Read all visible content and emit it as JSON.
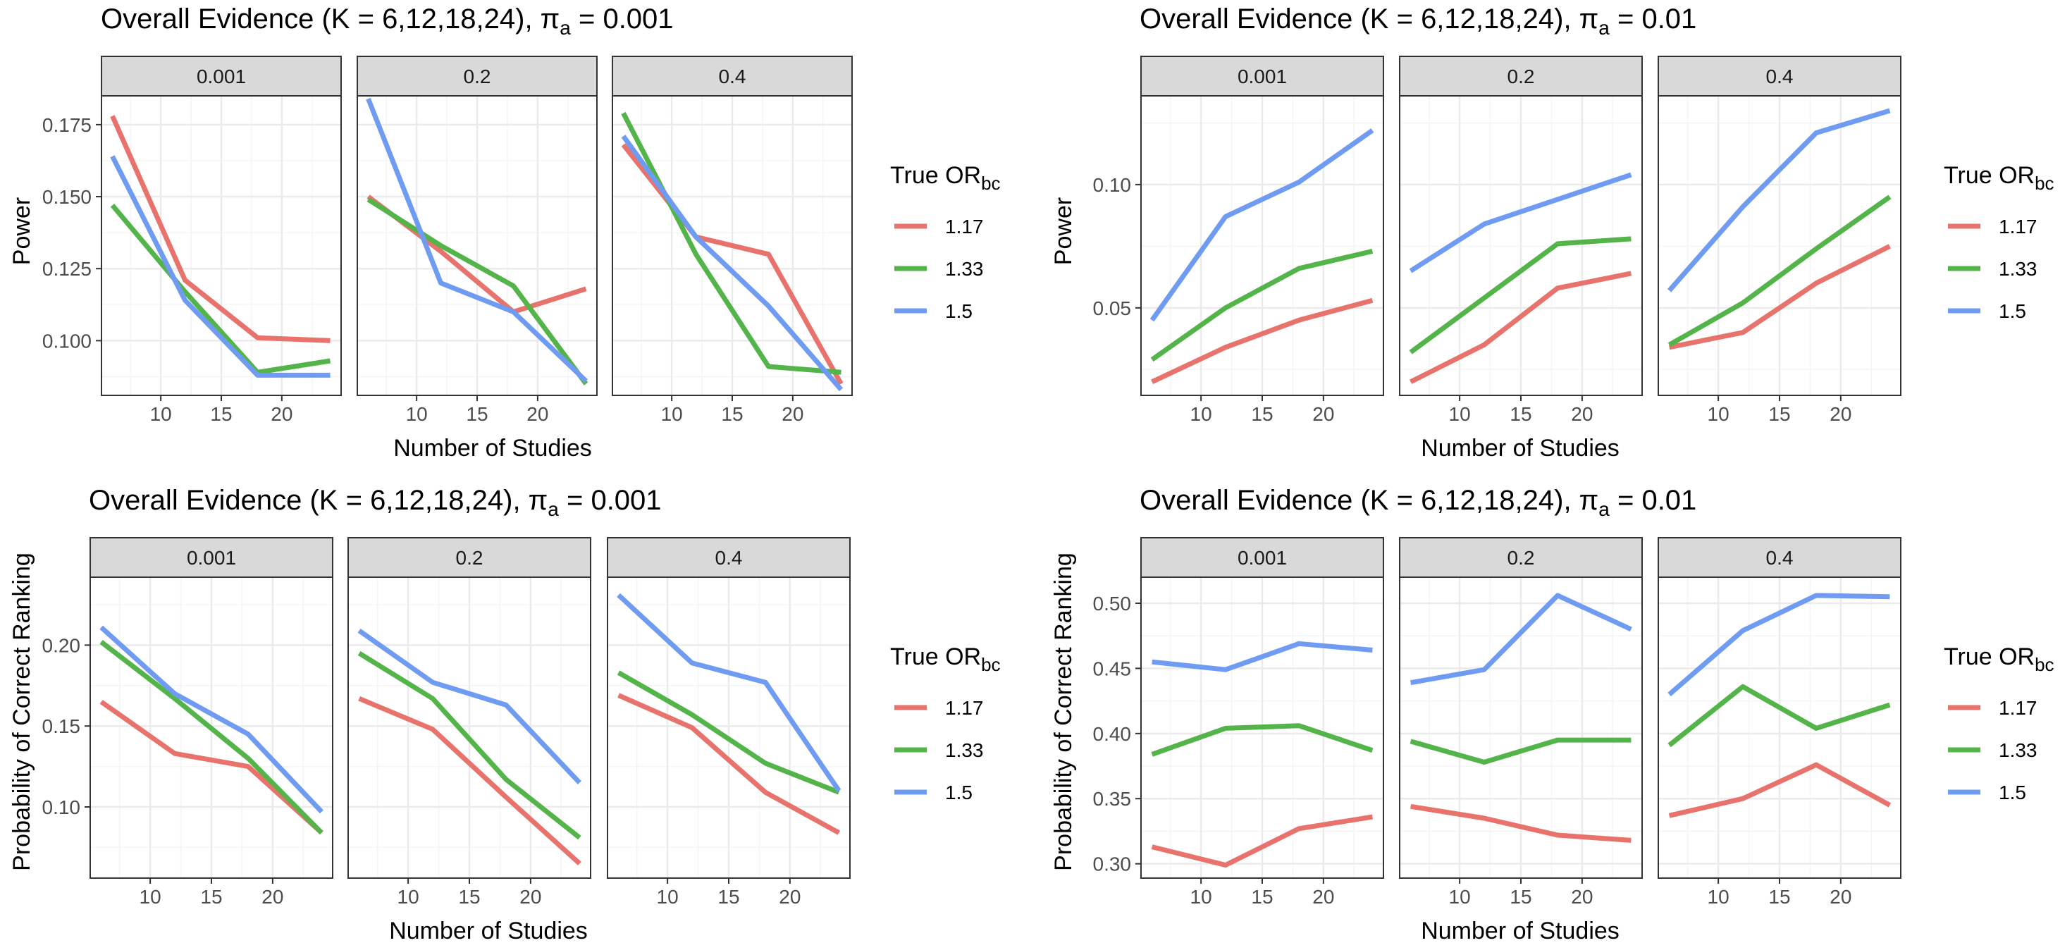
{
  "legend_title": "True OR",
  "legend_title_sub": "bc",
  "colors": {
    "1.17": "#E8736C",
    "1.33": "#53B44A",
    "1.5": "#6F9CF2",
    "strip_bg": "#D9D9D9",
    "panel_border": "#333333",
    "grid_major": "#EBEBEB",
    "grid_minor": "#F5F5F5"
  },
  "chart_data": [
    {
      "id": "top-left",
      "type": "line",
      "title_prefix": "Overall Evidence (K = 6,12,18,24), ",
      "title_pi": "π",
      "title_sub": "a",
      "title_suffix": " = 0.001",
      "xlabel": "Number of Studies",
      "ylabel": "Power",
      "xlim": [
        5.1,
        24.9
      ],
      "ylim": [
        0.081,
        0.185
      ],
      "x_ticks": [
        10,
        15,
        20
      ],
      "y_ticks": [
        0.1,
        0.125,
        0.15,
        0.175
      ],
      "y_tick_labels": [
        "0.100",
        "0.125",
        "0.150",
        "0.175"
      ],
      "x": [
        6,
        12,
        18,
        24
      ],
      "facets": [
        {
          "label": "0.001",
          "series": [
            {
              "name": "1.17",
              "values": [
                0.178,
                0.121,
                0.101,
                0.1
              ]
            },
            {
              "name": "1.33",
              "values": [
                0.147,
                0.117,
                0.089,
                0.093
              ]
            },
            {
              "name": "1.5",
              "values": [
                0.164,
                0.114,
                0.088,
                0.088
              ]
            }
          ]
        },
        {
          "label": "0.2",
          "series": [
            {
              "name": "1.17",
              "values": [
                0.15,
                0.131,
                0.11,
                0.118
              ]
            },
            {
              "name": "1.33",
              "values": [
                0.149,
                0.133,
                0.119,
                0.085
              ]
            },
            {
              "name": "1.5",
              "values": [
                0.184,
                0.12,
                0.11,
                0.086
              ]
            }
          ]
        },
        {
          "label": "0.4",
          "series": [
            {
              "name": "1.17",
              "values": [
                0.168,
                0.136,
                0.13,
                0.085
              ]
            },
            {
              "name": "1.33",
              "values": [
                0.179,
                0.13,
                0.091,
                0.089
              ]
            },
            {
              "name": "1.5",
              "values": [
                0.171,
                0.136,
                0.112,
                0.083
              ]
            }
          ]
        }
      ],
      "legend": [
        "1.17",
        "1.33",
        "1.5"
      ]
    },
    {
      "id": "top-right",
      "type": "line",
      "title_prefix": "Overall Evidence (K = 6,12,18,24), ",
      "title_pi": "π",
      "title_sub": "a",
      "title_suffix": " = 0.01",
      "xlabel": "Number of Studies",
      "ylabel": "Power",
      "xlim": [
        5.1,
        24.9
      ],
      "ylim": [
        0.0145,
        0.136
      ],
      "x_ticks": [
        10,
        15,
        20
      ],
      "y_ticks": [
        0.05,
        0.1
      ],
      "y_tick_labels": [
        "0.05",
        "0.10"
      ],
      "x": [
        6,
        12,
        18,
        24
      ],
      "facets": [
        {
          "label": "0.001",
          "series": [
            {
              "name": "1.17",
              "values": [
                0.02,
                0.034,
                0.045,
                0.053
              ]
            },
            {
              "name": "1.33",
              "values": [
                0.029,
                0.05,
                0.066,
                0.073
              ]
            },
            {
              "name": "1.5",
              "values": [
                0.045,
                0.087,
                0.101,
                0.122
              ]
            }
          ]
        },
        {
          "label": "0.2",
          "series": [
            {
              "name": "1.17",
              "values": [
                0.02,
                0.035,
                0.058,
                0.064
              ]
            },
            {
              "name": "1.33",
              "values": [
                0.032,
                0.054,
                0.076,
                0.078
              ]
            },
            {
              "name": "1.5",
              "values": [
                0.065,
                0.084,
                0.094,
                0.104
              ]
            }
          ]
        },
        {
          "label": "0.4",
          "series": [
            {
              "name": "1.17",
              "values": [
                0.034,
                0.04,
                0.06,
                0.075
              ]
            },
            {
              "name": "1.33",
              "values": [
                0.035,
                0.052,
                0.074,
                0.095
              ]
            },
            {
              "name": "1.5",
              "values": [
                0.057,
                0.091,
                0.121,
                0.13
              ]
            }
          ]
        }
      ],
      "legend": [
        "1.17",
        "1.33",
        "1.5"
      ]
    },
    {
      "id": "bottom-left",
      "type": "line",
      "title_prefix": "Overall Evidence (K = 6,12,18,24), ",
      "title_pi": "π",
      "title_sub": "a",
      "title_suffix": " = 0.001",
      "xlabel": "Number of Studies",
      "ylabel": "Probability of Correct Ranking",
      "xlim": [
        5.1,
        24.9
      ],
      "ylim": [
        0.056,
        0.242
      ],
      "x_ticks": [
        10,
        15,
        20
      ],
      "y_ticks": [
        0.1,
        0.15,
        0.2
      ],
      "y_tick_labels": [
        "0.10",
        "0.15",
        "0.20"
      ],
      "x": [
        6,
        12,
        18,
        24
      ],
      "facets": [
        {
          "label": "0.001",
          "series": [
            {
              "name": "1.17",
              "values": [
                0.165,
                0.133,
                0.125,
                0.084
              ]
            },
            {
              "name": "1.33",
              "values": [
                0.202,
                0.167,
                0.13,
                0.084
              ]
            },
            {
              "name": "1.5",
              "values": [
                0.211,
                0.17,
                0.145,
                0.097
              ]
            }
          ]
        },
        {
          "label": "0.2",
          "series": [
            {
              "name": "1.17",
              "values": [
                0.167,
                0.148,
                0.106,
                0.065
              ]
            },
            {
              "name": "1.33",
              "values": [
                0.195,
                0.167,
                0.117,
                0.081
              ]
            },
            {
              "name": "1.5",
              "values": [
                0.209,
                0.177,
                0.163,
                0.115
              ]
            }
          ]
        },
        {
          "label": "0.4",
          "series": [
            {
              "name": "1.17",
              "values": [
                0.169,
                0.149,
                0.109,
                0.084
              ]
            },
            {
              "name": "1.33",
              "values": [
                0.183,
                0.157,
                0.127,
                0.109
              ]
            },
            {
              "name": "1.5",
              "values": [
                0.231,
                0.189,
                0.177,
                0.11
              ]
            }
          ]
        }
      ],
      "legend": [
        "1.17",
        "1.33",
        "1.5"
      ]
    },
    {
      "id": "bottom-right",
      "type": "line",
      "title_prefix": "Overall Evidence (K = 6,12,18,24), ",
      "title_pi": "π",
      "title_sub": "a",
      "title_suffix": " = 0.01",
      "xlabel": "Number of Studies",
      "ylabel": "Probability of Correct Ranking",
      "xlim": [
        5.1,
        24.9
      ],
      "ylim": [
        0.289,
        0.52
      ],
      "x_ticks": [
        10,
        15,
        20
      ],
      "y_ticks": [
        0.3,
        0.35,
        0.4,
        0.45,
        0.5
      ],
      "y_tick_labels": [
        "0.30",
        "0.35",
        "0.40",
        "0.45",
        "0.50"
      ],
      "x": [
        6,
        12,
        18,
        24
      ],
      "facets": [
        {
          "label": "0.001",
          "series": [
            {
              "name": "1.17",
              "values": [
                0.313,
                0.299,
                0.327,
                0.336
              ]
            },
            {
              "name": "1.33",
              "values": [
                0.384,
                0.404,
                0.406,
                0.387
              ]
            },
            {
              "name": "1.5",
              "values": [
                0.455,
                0.449,
                0.469,
                0.464
              ]
            }
          ]
        },
        {
          "label": "0.2",
          "series": [
            {
              "name": "1.17",
              "values": [
                0.344,
                0.335,
                0.322,
                0.318
              ]
            },
            {
              "name": "1.33",
              "values": [
                0.394,
                0.378,
                0.395,
                0.395
              ]
            },
            {
              "name": "1.5",
              "values": [
                0.439,
                0.449,
                0.506,
                0.48
              ]
            }
          ]
        },
        {
          "label": "0.4",
          "series": [
            {
              "name": "1.17",
              "values": [
                0.337,
                0.35,
                0.376,
                0.345
              ]
            },
            {
              "name": "1.33",
              "values": [
                0.391,
                0.436,
                0.404,
                0.422
              ]
            },
            {
              "name": "1.5",
              "values": [
                0.43,
                0.479,
                0.506,
                0.505
              ]
            }
          ]
        }
      ],
      "legend": [
        "1.17",
        "1.33",
        "1.5"
      ]
    }
  ]
}
